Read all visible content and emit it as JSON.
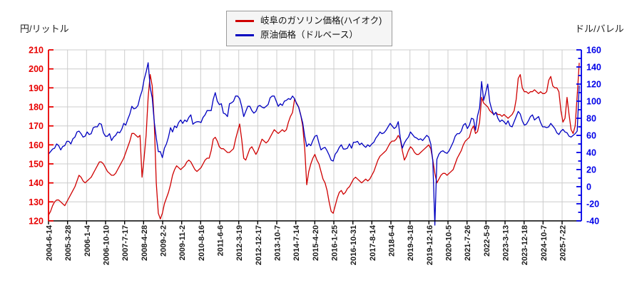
{
  "legend": {
    "items": [
      {
        "label": "岐阜のガソリン価格(ハイオク)",
        "color": "#cf0000"
      },
      {
        "label": "原油価格（ドルベース）",
        "color": "#0000c0"
      }
    ]
  },
  "chart_data": {
    "type": "line",
    "title": "",
    "grid": true,
    "legend_position": "top-center",
    "x_tick_labels": [
      "2004-6-14",
      "2005-3-28",
      "2006-1-4",
      "2006-10-10",
      "2007-7-17",
      "2008-4-28",
      "2009-2-2",
      "2009-11-2",
      "2010-8-16",
      "2011-6-6",
      "2012-3-19",
      "2012-12-17",
      "2013-10-7",
      "2014-7-14",
      "2015-4-20",
      "2016-1-25",
      "2016-10-31",
      "2017-8-14",
      "2018-6-4",
      "2019-3-18",
      "2019-12-16",
      "2020-10-5",
      "2021-7-26",
      "2022-5-9",
      "2023-3-13",
      "2023-12-18",
      "2024-10-7",
      "2025-7-22"
    ],
    "y_left": {
      "title": "円/リットル",
      "min": 120,
      "max": 210,
      "tick_step": 10,
      "ticks": [
        210,
        200,
        190,
        180,
        170,
        160,
        150,
        140,
        130,
        120
      ],
      "axis_color": "#e80000"
    },
    "y_right": {
      "title": "ドル/バレル",
      "min": -40,
      "max": 160,
      "tick_step": 20,
      "ticks": [
        160,
        140,
        120,
        100,
        80,
        60,
        40,
        20,
        0,
        -20,
        -40
      ],
      "axis_color": "#0000e8"
    },
    "x_sampling": "monthly estimates read from the plotted weekly lines, first point = 2004-6-14, last point ≈ right edge of plot",
    "series": [
      {
        "name": "岐阜のガソリン価格(ハイオク)",
        "axis": "left",
        "unit": "円/リットル",
        "color": "#cf0000",
        "values": [
          123,
          125,
          128,
          130,
          131,
          131,
          130,
          129,
          128,
          130,
          132,
          134,
          136,
          138,
          141,
          144,
          143,
          141,
          140,
          141,
          142,
          143,
          145,
          147,
          149,
          151,
          151,
          150,
          148,
          146,
          145,
          144,
          144,
          145,
          147,
          149,
          151,
          153,
          156,
          159,
          162,
          166,
          166,
          165,
          164,
          165,
          143,
          153,
          165,
          185,
          197,
          191,
          172,
          140,
          124,
          121,
          124,
          129,
          132,
          135,
          139,
          144,
          147,
          149,
          148,
          147,
          148,
          149,
          151,
          152,
          151,
          149,
          147,
          146,
          147,
          148,
          150,
          152,
          153,
          153,
          157,
          163,
          164,
          162,
          159,
          158,
          158,
          157,
          156,
          156,
          157,
          158,
          163,
          167,
          171,
          163,
          153,
          152,
          155,
          158,
          159,
          157,
          155,
          157,
          160,
          163,
          162,
          161,
          162,
          164,
          166,
          168,
          167,
          166,
          167,
          168,
          167,
          168,
          172,
          175,
          177,
          184,
          182,
          180,
          176,
          170,
          158,
          139,
          146,
          150,
          153,
          155,
          152,
          150,
          146,
          142,
          140,
          136,
          130,
          125,
          124,
          128,
          132,
          135,
          136,
          134,
          135,
          137,
          138,
          140,
          142,
          143,
          142,
          141,
          140,
          141,
          142,
          141,
          142,
          144,
          146,
          149,
          152,
          154,
          155,
          156,
          157,
          159,
          161,
          162,
          162,
          163,
          165,
          163,
          157,
          152,
          154,
          157,
          159,
          158,
          156,
          155,
          155,
          156,
          157,
          158,
          159,
          160,
          158,
          152,
          145,
          140,
          142,
          144,
          145,
          145,
          144,
          145,
          146,
          147,
          150,
          153,
          155,
          157,
          160,
          162,
          163,
          164,
          168,
          170,
          166,
          167,
          172,
          185,
          182,
          181,
          180,
          178,
          177,
          176,
          177,
          176,
          176,
          175,
          176,
          175,
          174,
          175,
          176,
          178,
          184,
          195,
          197,
          190,
          188,
          188,
          187,
          188,
          188,
          189,
          188,
          187,
          188,
          187,
          187,
          188,
          194,
          196,
          191,
          190,
          190,
          188,
          178,
          172,
          174,
          185,
          176,
          168,
          166,
          170,
          186,
          203
        ]
      },
      {
        "name": "原油価格（ドルベース）",
        "axis": "right",
        "unit": "ドル/バレル",
        "color": "#0000c0",
        "values": [
          38,
          41,
          44,
          45,
          50,
          48,
          43,
          47,
          48,
          53,
          53,
          50,
          56,
          58,
          64,
          65,
          62,
          58,
          59,
          64,
          61,
          62,
          69,
          70,
          70,
          74,
          73,
          63,
          59,
          59,
          62,
          54,
          58,
          60,
          64,
          63,
          67,
          74,
          72,
          79,
          85,
          94,
          91,
          92,
          95,
          105,
          112,
          125,
          134,
          145,
          116,
          104,
          76,
          57,
          41,
          41,
          34,
          45,
          50,
          58,
          69,
          64,
          71,
          69,
          75,
          78,
          74,
          78,
          76,
          81,
          84,
          73,
          75,
          76,
          76,
          75,
          81,
          84,
          89,
          89,
          89,
          102,
          110,
          100,
          96,
          97,
          86,
          85,
          82,
          97,
          98,
          100,
          106,
          106,
          103,
          94,
          82,
          88,
          94,
          94,
          89,
          86,
          88,
          94,
          95,
          93,
          92,
          94,
          96,
          104,
          106,
          106,
          100,
          94,
          97,
          95,
          100,
          101,
          103,
          102,
          106,
          103,
          97,
          93,
          84,
          75,
          59,
          47,
          50,
          48,
          54,
          59,
          60,
          51,
          43,
          45,
          46,
          42,
          37,
          31,
          30,
          38,
          41,
          46,
          49,
          44,
          44,
          45,
          50,
          45,
          52,
          52,
          53,
          49,
          51,
          48,
          46,
          49,
          47,
          50,
          52,
          57,
          60,
          64,
          62,
          63,
          66,
          70,
          74,
          71,
          68,
          70,
          76,
          57,
          45,
          51,
          55,
          58,
          64,
          61,
          58,
          57,
          55,
          56,
          54,
          57,
          60,
          58,
          50,
          30,
          -45,
          32,
          38,
          41,
          42,
          40,
          39,
          42,
          47,
          52,
          59,
          62,
          62,
          65,
          72,
          74,
          68,
          72,
          80,
          79,
          66,
          83,
          92,
          123,
          101,
          110,
          120,
          99,
          90,
          84,
          87,
          80,
          76,
          78,
          76,
          73,
          77,
          71,
          70,
          76,
          82,
          88,
          85,
          77,
          72,
          73,
          77,
          82,
          84,
          78,
          80,
          82,
          75,
          70,
          70,
          69,
          70,
          74,
          71,
          68,
          63,
          61,
          65,
          67,
          64,
          63,
          59,
          58,
          60,
          62,
          65,
          118
        ]
      }
    ]
  }
}
